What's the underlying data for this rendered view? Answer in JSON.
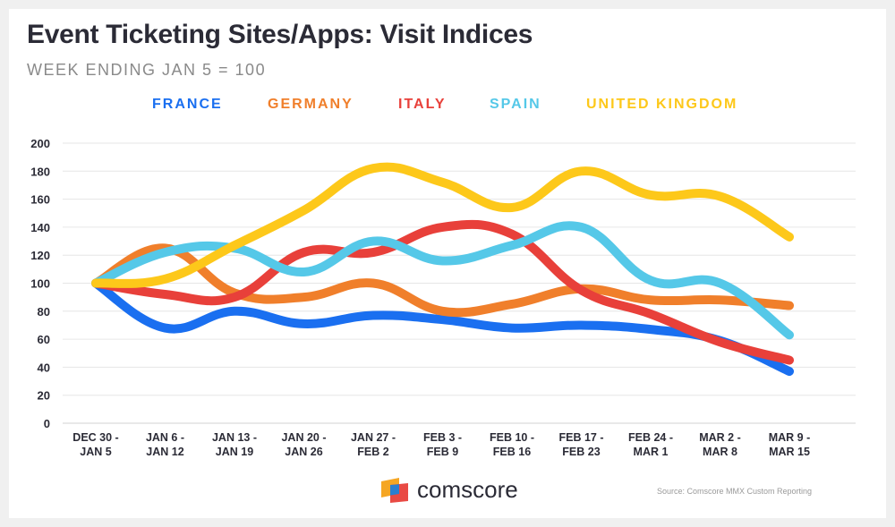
{
  "title": "Event Ticketing Sites/Apps: Visit Indices",
  "subtitle": "WEEK ENDING JAN 5 = 100",
  "brand": {
    "name": "comscore"
  },
  "source": "Source: Comscore MMX Custom Reporting",
  "chart_data": {
    "type": "line",
    "categories": [
      [
        "DEC 30 -",
        "JAN 5"
      ],
      [
        "JAN 6 -",
        "JAN 12"
      ],
      [
        "JAN 13 -",
        "JAN 19"
      ],
      [
        "JAN 20 -",
        "JAN 26"
      ],
      [
        "JAN 27 -",
        "FEB 2"
      ],
      [
        "FEB 3 -",
        "FEB 9"
      ],
      [
        "FEB 10 -",
        "FEB 16"
      ],
      [
        "FEB 17 -",
        "FEB 23"
      ],
      [
        "FEB 24 -",
        "MAR 1"
      ],
      [
        "MAR 2 -",
        "MAR 8"
      ],
      [
        "MAR 9 -",
        "MAR 15"
      ]
    ],
    "ylim": [
      0,
      200
    ],
    "yticks": [
      0,
      20,
      40,
      60,
      80,
      100,
      120,
      140,
      160,
      180,
      200
    ],
    "grid": true,
    "legend_position": "top",
    "series": [
      {
        "name": "FRANCE",
        "color": "#1a6ff0",
        "values": [
          100,
          68,
          80,
          71,
          77,
          74,
          68,
          70,
          67,
          59,
          37
        ]
      },
      {
        "name": "GERMANY",
        "color": "#f07f2b",
        "values": [
          100,
          125,
          93,
          90,
          100,
          80,
          85,
          96,
          88,
          88,
          84
        ]
      },
      {
        "name": "ITALY",
        "color": "#e8403a",
        "values": [
          100,
          92,
          90,
          122,
          122,
          140,
          135,
          95,
          78,
          58,
          45
        ]
      },
      {
        "name": "SPAIN",
        "color": "#55c8e8",
        "values": [
          100,
          122,
          125,
          108,
          130,
          116,
          127,
          140,
          102,
          100,
          63
        ]
      },
      {
        "name": "UNITED KINGDOM",
        "color": "#fdc81a",
        "values": [
          100,
          103,
          127,
          152,
          182,
          172,
          154,
          180,
          163,
          162,
          133
        ]
      }
    ]
  }
}
